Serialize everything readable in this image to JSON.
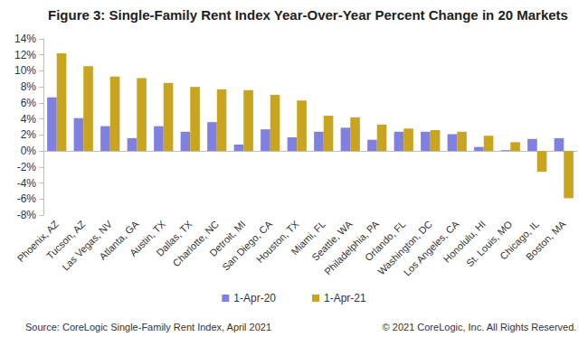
{
  "chart_data": {
    "type": "bar",
    "title": "Figure 3: Single-Family Rent Index Year-Over-Year Percent Change in 20 Markets",
    "categories": [
      "Phoenix, AZ",
      "Tucson, AZ",
      "Las Vegas, NV",
      "Atlanta, GA",
      "Austin, TX",
      "Dallas, TX",
      "Charlotte, NC",
      "Detroit, MI",
      "San Diego, CA",
      "Houston, TX",
      "Miami, FL",
      "Seattle, WA",
      "Philadelphia, PA",
      "Orlando, FL",
      "Washington, DC",
      "Los Angeles, CA",
      "Honolulu, HI",
      "St. Louis, MO",
      "Chicago, IL",
      "Boston, MA"
    ],
    "series": [
      {
        "name": "1-Apr-20",
        "color": "#7f80e0",
        "values": [
          6.7,
          4.1,
          3.1,
          1.6,
          3.1,
          2.4,
          3.6,
          0.8,
          2.7,
          1.7,
          2.4,
          2.9,
          1.4,
          2.4,
          2.4,
          2.1,
          0.5,
          0.1,
          1.5,
          1.6
        ]
      },
      {
        "name": "1-Apr-21",
        "color": "#c9a41e",
        "values": [
          12.2,
          10.6,
          9.3,
          9.1,
          8.5,
          8.0,
          7.7,
          7.6,
          7.0,
          6.3,
          4.4,
          4.2,
          3.3,
          2.8,
          2.6,
          2.4,
          1.9,
          1.1,
          -2.6,
          -5.9
        ]
      }
    ],
    "ylim": [
      -8,
      14
    ],
    "yticks": [
      {
        "value": -8,
        "label": "-8%"
      },
      {
        "value": -6,
        "label": "-6%"
      },
      {
        "value": -4,
        "label": "-4%"
      },
      {
        "value": -2,
        "label": "-2%"
      },
      {
        "value": 0,
        "label": "0%"
      },
      {
        "value": 2,
        "label": "2%"
      },
      {
        "value": 4,
        "label": "4%"
      },
      {
        "value": 6,
        "label": "6%"
      },
      {
        "value": 8,
        "label": "8%"
      },
      {
        "value": 10,
        "label": "10%"
      },
      {
        "value": 12,
        "label": "12%"
      },
      {
        "value": 14,
        "label": "14%"
      }
    ],
    "grid": false,
    "legend": "bottom",
    "annotations": [
      "Source: CoreLogic Single-Family Rent Index, April 2021",
      "© 2021 CoreLogic, Inc. All Rights Reserved."
    ]
  }
}
